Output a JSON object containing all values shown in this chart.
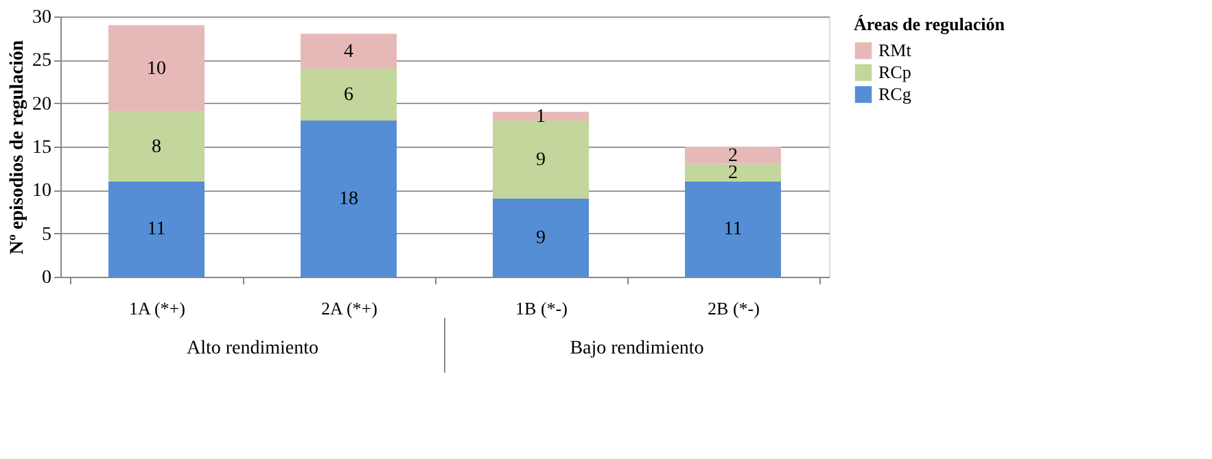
{
  "chart_data": {
    "type": "bar",
    "stacked": true,
    "ylabel": "Nº episodios de regulación",
    "legend_title": "Áreas de regulación",
    "categories": [
      "1A (*+)",
      "2A (*+)",
      "1B (*-)",
      "2B (*-)"
    ],
    "series": [
      {
        "name": "RCg",
        "color": "#558ed5",
        "values": [
          11,
          18,
          9,
          11
        ]
      },
      {
        "name": "RCp",
        "color": "#c3d69b",
        "values": [
          8,
          6,
          9,
          2
        ]
      },
      {
        "name": "RMt",
        "color": "#e6b9b8",
        "values": [
          10,
          4,
          1,
          2
        ]
      }
    ],
    "ylim": [
      0,
      30
    ],
    "yticks": [
      0,
      5,
      10,
      15,
      20,
      25,
      30
    ],
    "grid": "y",
    "legend": "right",
    "data_labels": true,
    "annotations": [
      "Alto rendimiento",
      "Bajo rendimiento"
    ]
  }
}
